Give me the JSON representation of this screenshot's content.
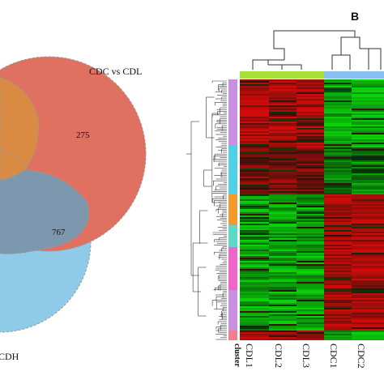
{
  "venn": {
    "set_labels": [
      "CDC vs CDL",
      "CDH"
    ],
    "counts": [
      "275",
      "767"
    ],
    "colors": {
      "red": "#e0705f",
      "blue": "#8fcbe8",
      "orange": "#d98a43",
      "overlap": "#7d98ae"
    }
  },
  "heatmap": {
    "panel_label": "B",
    "cluster_label": "cluster",
    "columns": [
      "CDL1",
      "CDL2",
      "CDL3",
      "CDC1",
      "CDC2"
    ],
    "group_colors": [
      "#a8e03a",
      "#86bff0"
    ],
    "cluster_colors": [
      "#c890e0",
      "#4fd0e6",
      "#f19a2c",
      "#5fd8c8",
      "#ee66c8",
      "#c890e0",
      "#f08090"
    ]
  }
}
